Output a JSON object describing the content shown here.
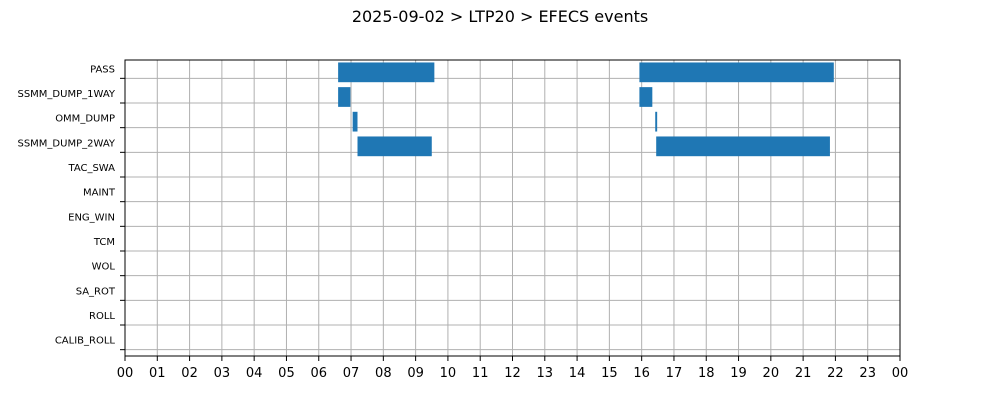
{
  "chart_data": {
    "type": "bar",
    "orientation": "horizontal-timeline",
    "title": "2025-09-02 > LTP20 > EFECS events",
    "xlabel": "",
    "ylabel": "",
    "xlim": [
      0,
      24
    ],
    "x_ticks": [
      "00",
      "01",
      "02",
      "03",
      "04",
      "05",
      "06",
      "07",
      "08",
      "09",
      "10",
      "11",
      "12",
      "13",
      "14",
      "15",
      "16",
      "17",
      "18",
      "19",
      "20",
      "21",
      "22",
      "23",
      "00"
    ],
    "categories": [
      "PASS",
      "SSMM_DUMP_1WAY",
      "OMM_DUMP",
      "SSMM_DUMP_2WAY",
      "TAC_SWA",
      "MAINT",
      "ENG_WIN",
      "TCM",
      "WOL",
      "SA_ROT",
      "ROLL",
      "CALIB_ROLL"
    ],
    "events": [
      {
        "category": "PASS",
        "start": 6.6,
        "end": 9.58
      },
      {
        "category": "PASS",
        "start": 15.93,
        "end": 21.95
      },
      {
        "category": "SSMM_DUMP_1WAY",
        "start": 6.6,
        "end": 6.98
      },
      {
        "category": "SSMM_DUMP_1WAY",
        "start": 15.93,
        "end": 16.33
      },
      {
        "category": "OMM_DUMP",
        "start": 7.05,
        "end": 7.2
      },
      {
        "category": "OMM_DUMP",
        "start": 16.42,
        "end": 16.48
      },
      {
        "category": "SSMM_DUMP_2WAY",
        "start": 7.2,
        "end": 9.5
      },
      {
        "category": "SSMM_DUMP_2WAY",
        "start": 16.45,
        "end": 21.83
      }
    ],
    "grid": true,
    "legend": "none",
    "bar_color": "#1f77b4"
  }
}
